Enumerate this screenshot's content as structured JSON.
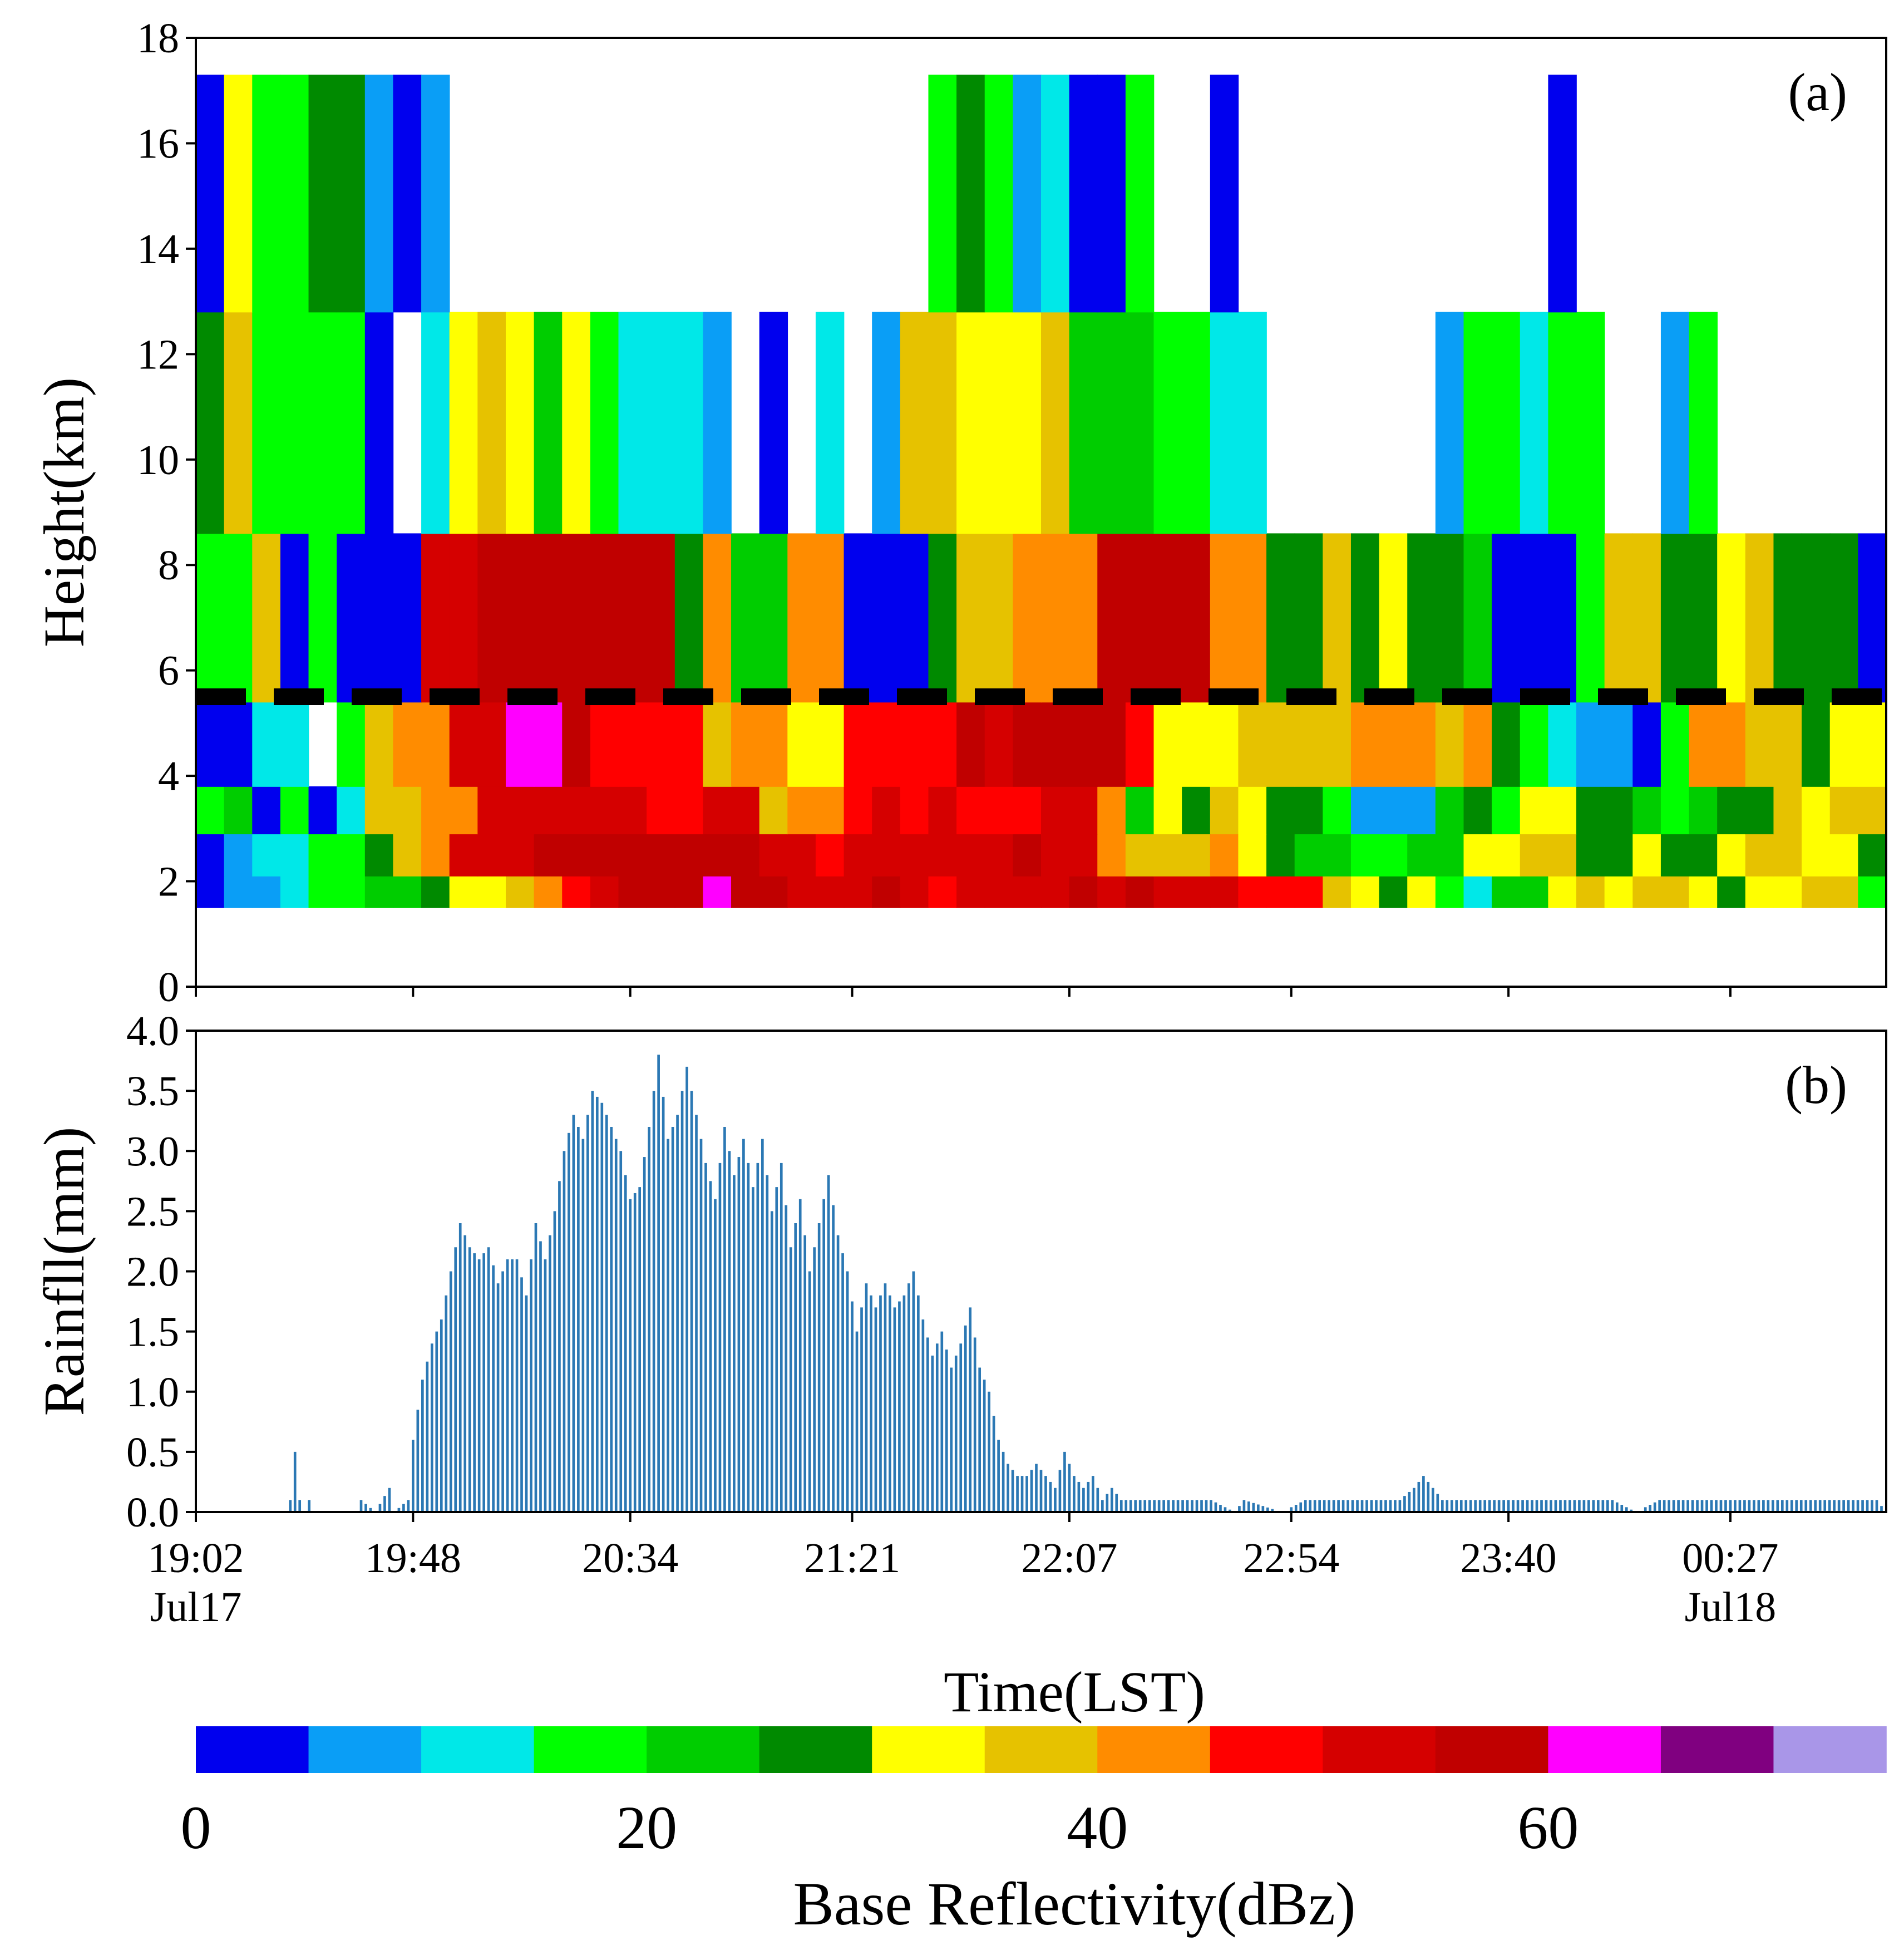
{
  "chart_data": [
    {
      "panel_label": "(a)",
      "type": "heatmap",
      "ylabel": "Height(km)",
      "ylim": [
        0,
        18
      ],
      "yticks": [
        "0",
        "2",
        "4",
        "6",
        "8",
        "10",
        "12",
        "14",
        "16",
        "18"
      ],
      "time_columns": 60,
      "reference_line": {
        "height_km": 5.5,
        "style": "dashed"
      },
      "height_bands_km": [
        [
          1.5,
          2.1
        ],
        [
          2.1,
          2.9
        ],
        [
          2.9,
          3.8
        ],
        [
          3.8,
          5.4
        ],
        [
          5.4,
          8.6
        ],
        [
          8.6,
          12.8
        ],
        [
          12.8,
          17.3
        ]
      ],
      "reflectivity_bins_dbz": [
        [
          0,
          1,
          1,
          2,
          3,
          3,
          4,
          4,
          5,
          6,
          6,
          7,
          8,
          9,
          10,
          11,
          11,
          11,
          12,
          11,
          11,
          10,
          10,
          10,
          11,
          10,
          9,
          10,
          10,
          10,
          10,
          11,
          10,
          11,
          10,
          10,
          10,
          9,
          9,
          9,
          7,
          6,
          5,
          6,
          3,
          2,
          4,
          4,
          6,
          7,
          6,
          7,
          7,
          6,
          5,
          6,
          6,
          7,
          7,
          3
        ],
        [
          0,
          1,
          2,
          2,
          3,
          3,
          5,
          7,
          8,
          10,
          10,
          10,
          11,
          11,
          11,
          11,
          11,
          11,
          11,
          11,
          10,
          10,
          9,
          10,
          10,
          10,
          10,
          10,
          10,
          11,
          10,
          10,
          8,
          7,
          7,
          7,
          8,
          6,
          5,
          4,
          4,
          3,
          3,
          4,
          4,
          6,
          6,
          7,
          7,
          5,
          5,
          6,
          5,
          5,
          6,
          7,
          7,
          6,
          6,
          5
        ],
        [
          3,
          4,
          0,
          3,
          0,
          2,
          7,
          7,
          8,
          8,
          10,
          10,
          10,
          10,
          10,
          10,
          9,
          9,
          10,
          10,
          7,
          8,
          8,
          9,
          10,
          9,
          10,
          9,
          9,
          9,
          10,
          10,
          8,
          4,
          6,
          5,
          7,
          6,
          5,
          5,
          3,
          1,
          1,
          1,
          4,
          5,
          3,
          6,
          6,
          5,
          5,
          4,
          3,
          4,
          5,
          5,
          7,
          6,
          7,
          7
        ],
        [
          0,
          0,
          2,
          2,
          99,
          3,
          7,
          8,
          8,
          10,
          10,
          12,
          12,
          11,
          9,
          9,
          9,
          9,
          7,
          8,
          8,
          6,
          6,
          9,
          9,
          9,
          9,
          11,
          10,
          11,
          11,
          11,
          11,
          9,
          6,
          6,
          6,
          7,
          7,
          7,
          7,
          8,
          8,
          8,
          7,
          8,
          5,
          3,
          2,
          1,
          1,
          0,
          3,
          8,
          8,
          7,
          7,
          5,
          6,
          6
        ],
        [
          3,
          3,
          7,
          0,
          3,
          0,
          0,
          0,
          10,
          10,
          11,
          11,
          11,
          11,
          11,
          11,
          11,
          5,
          8,
          4,
          4,
          8,
          8,
          0,
          0,
          0,
          5,
          7,
          7,
          8,
          8,
          8,
          11,
          11,
          11,
          11,
          8,
          8,
          5,
          5,
          7,
          5,
          6,
          5,
          5,
          4,
          0,
          0,
          0,
          3,
          7,
          7,
          5,
          5,
          6,
          7,
          5,
          5,
          5,
          0
        ],
        [
          5,
          7,
          3,
          3,
          3,
          3,
          0,
          99,
          2,
          6,
          7,
          6,
          4,
          6,
          3,
          2,
          2,
          2,
          1,
          99,
          0,
          99,
          2,
          99,
          1,
          7,
          7,
          6,
          6,
          6,
          7,
          4,
          4,
          4,
          3,
          3,
          2,
          2,
          99,
          99,
          99,
          99,
          99,
          99,
          1,
          3,
          3,
          2,
          3,
          3,
          99,
          99,
          1,
          3,
          99,
          99,
          99,
          99,
          99,
          99
        ],
        [
          0,
          6,
          3,
          3,
          5,
          5,
          1,
          0,
          1,
          99,
          99,
          99,
          99,
          99,
          99,
          99,
          99,
          99,
          99,
          99,
          99,
          99,
          99,
          99,
          99,
          99,
          3,
          5,
          3,
          1,
          2,
          0,
          0,
          3,
          99,
          99,
          0,
          99,
          99,
          99,
          99,
          99,
          99,
          99,
          99,
          99,
          99,
          99,
          0,
          99,
          99,
          99,
          99,
          99,
          99,
          99,
          99,
          99,
          99,
          99
        ]
      ]
    },
    {
      "panel_label": "(b)",
      "type": "bar",
      "ylabel": "Rainfll(mm)",
      "xlabel": "Time(LST)",
      "ylim": [
        0,
        4.0
      ],
      "yticks": [
        "0.0",
        "0.5",
        "1.0",
        "1.5",
        "2.0",
        "2.5",
        "3.0",
        "3.5",
        "4.0"
      ],
      "x_range_min": [
        0,
        358
      ],
      "xticks": [
        {
          "label": "19:02",
          "sublabel": "Jul17",
          "min": 0
        },
        {
          "label": "19:48",
          "sublabel": "",
          "min": 46
        },
        {
          "label": "20:34",
          "sublabel": "",
          "min": 92
        },
        {
          "label": "21:21",
          "sublabel": "",
          "min": 139
        },
        {
          "label": "22:07",
          "sublabel": "",
          "min": 185
        },
        {
          "label": "22:54",
          "sublabel": "",
          "min": 232
        },
        {
          "label": "23:40",
          "sublabel": "",
          "min": 278
        },
        {
          "label": "00:27",
          "sublabel": "Jul18",
          "min": 325
        }
      ],
      "series_anchor_points_min_mm": [
        [
          0,
          0
        ],
        [
          19,
          0
        ],
        [
          20,
          0.1
        ],
        [
          21,
          0.5
        ],
        [
          22,
          0.1
        ],
        [
          23,
          0
        ],
        [
          24,
          0.1
        ],
        [
          25,
          0
        ],
        [
          34,
          0
        ],
        [
          35,
          0.1
        ],
        [
          38,
          0
        ],
        [
          41,
          0.2
        ],
        [
          42,
          0
        ],
        [
          45,
          0.1
        ],
        [
          46,
          0.6
        ],
        [
          48,
          1.1
        ],
        [
          50,
          1.4
        ],
        [
          52,
          1.6
        ],
        [
          54,
          2.0
        ],
        [
          56,
          2.4
        ],
        [
          58,
          2.2
        ],
        [
          60,
          2.1
        ],
        [
          62,
          2.2
        ],
        [
          64,
          1.9
        ],
        [
          66,
          2.1
        ],
        [
          68,
          2.1
        ],
        [
          70,
          1.8
        ],
        [
          72,
          2.4
        ],
        [
          74,
          2.1
        ],
        [
          76,
          2.5
        ],
        [
          78,
          3.0
        ],
        [
          80,
          3.3
        ],
        [
          82,
          3.1
        ],
        [
          84,
          3.5
        ],
        [
          86,
          3.4
        ],
        [
          88,
          3.2
        ],
        [
          90,
          3.0
        ],
        [
          92,
          2.6
        ],
        [
          94,
          2.7
        ],
        [
          96,
          3.2
        ],
        [
          98,
          3.8
        ],
        [
          100,
          3.1
        ],
        [
          102,
          3.3
        ],
        [
          104,
          3.7
        ],
        [
          106,
          3.3
        ],
        [
          108,
          2.9
        ],
        [
          110,
          2.6
        ],
        [
          112,
          3.2
        ],
        [
          114,
          2.8
        ],
        [
          116,
          3.1
        ],
        [
          118,
          2.7
        ],
        [
          120,
          3.1
        ],
        [
          122,
          2.5
        ],
        [
          124,
          2.9
        ],
        [
          126,
          2.2
        ],
        [
          128,
          2.6
        ],
        [
          130,
          2.0
        ],
        [
          132,
          2.4
        ],
        [
          134,
          2.8
        ],
        [
          136,
          2.3
        ],
        [
          138,
          2.0
        ],
        [
          140,
          1.5
        ],
        [
          142,
          1.9
        ],
        [
          144,
          1.7
        ],
        [
          146,
          1.9
        ],
        [
          148,
          1.7
        ],
        [
          150,
          1.8
        ],
        [
          152,
          2.0
        ],
        [
          154,
          1.6
        ],
        [
          156,
          1.3
        ],
        [
          158,
          1.5
        ],
        [
          160,
          1.2
        ],
        [
          162,
          1.4
        ],
        [
          164,
          1.7
        ],
        [
          166,
          1.2
        ],
        [
          168,
          1.0
        ],
        [
          170,
          0.6
        ],
        [
          172,
          0.4
        ],
        [
          174,
          0.3
        ],
        [
          176,
          0.3
        ],
        [
          178,
          0.4
        ],
        [
          180,
          0.3
        ],
        [
          182,
          0.2
        ],
        [
          184,
          0.5
        ],
        [
          186,
          0.3
        ],
        [
          188,
          0.2
        ],
        [
          190,
          0.3
        ],
        [
          192,
          0.1
        ],
        [
          194,
          0.2
        ],
        [
          196,
          0.1
        ],
        [
          198,
          0.1
        ],
        [
          200,
          0.1
        ],
        [
          205,
          0.1
        ],
        [
          210,
          0.1
        ],
        [
          215,
          0.1
        ],
        [
          220,
          0
        ],
        [
          222,
          0.1
        ],
        [
          230,
          0
        ],
        [
          235,
          0.1
        ],
        [
          240,
          0.1
        ],
        [
          245,
          0.1
        ],
        [
          250,
          0.1
        ],
        [
          255,
          0.1
        ],
        [
          258,
          0.2
        ],
        [
          260,
          0.3
        ],
        [
          262,
          0.2
        ],
        [
          264,
          0.1
        ],
        [
          270,
          0.1
        ],
        [
          275,
          0.1
        ],
        [
          280,
          0.1
        ],
        [
          285,
          0.1
        ],
        [
          290,
          0.1
        ],
        [
          295,
          0.1
        ],
        [
          300,
          0.1
        ],
        [
          305,
          0
        ],
        [
          310,
          0.1
        ],
        [
          318,
          0.1
        ],
        [
          322,
          0.1
        ],
        [
          326,
          0.1
        ],
        [
          330,
          0.1
        ],
        [
          334,
          0.1
        ],
        [
          338,
          0.1
        ],
        [
          344,
          0.1
        ],
        [
          350,
          0.1
        ],
        [
          356,
          0.1
        ],
        [
          358,
          0
        ]
      ]
    }
  ],
  "colorbar": {
    "label": "Base Reflectivity(dBz)",
    "ticks": [
      "0",
      "20",
      "40",
      "60"
    ],
    "tick_values_dbz": [
      0,
      20,
      40,
      60
    ],
    "bin_width_dbz": 5,
    "colors": [
      "#0000ee",
      "#0a9ef6",
      "#00e8e8",
      "#00ff00",
      "#00cd00",
      "#008a00",
      "#ffff00",
      "#e6c200",
      "#ff8c00",
      "#ff0000",
      "#d50000",
      "#c00000",
      "#ff00ff",
      "#800080",
      "#a996e8"
    ]
  },
  "bar_color": "#2b78b4",
  "dash_color": "#000000"
}
